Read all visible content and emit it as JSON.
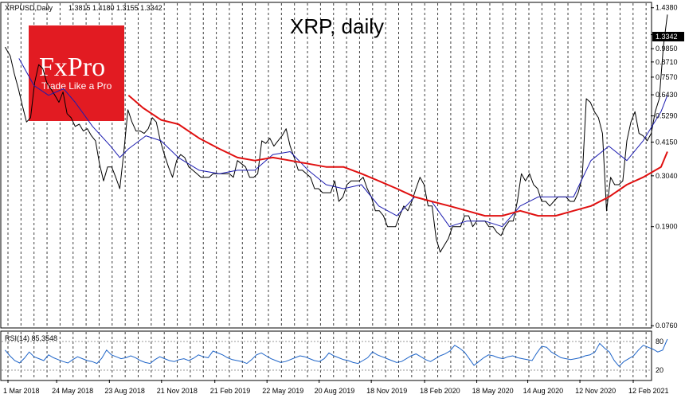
{
  "chart_data": {
    "type": "line",
    "title": "XRP, daily",
    "header": {
      "symbol_label": "XRPUSD,Daily",
      "ohlc": "1.3815 1.4180 1.3155 1.3342"
    },
    "last_price_label": "1.3342",
    "y_scale": "log",
    "ylim": [
      0.075,
      1.5
    ],
    "y_ticks": [
      1.438,
      1.3342,
      1.121,
      0.985,
      0.871,
      0.757,
      0.643,
      0.529,
      0.415,
      0.304,
      0.19,
      0.076
    ],
    "y_tick_labels": [
      "1.4380",
      "1.1210",
      "0.9850",
      "0.8710",
      "0.7570",
      "0.6430",
      "0.5290",
      "0.4150",
      "0.3040",
      "0.1900",
      "0.0760"
    ],
    "x_tick_labels": [
      "1 Mar 2018",
      "24 May 2018",
      "23 Aug 2018",
      "21 Nov 2018",
      "21 Feb 2019",
      "22 May 2019",
      "20 Aug 2019",
      "18 Nov 2019",
      "18 Feb 2020",
      "18 May 2020",
      "14 Aug 2020",
      "12 Nov 2020",
      "12 Feb 2021"
    ],
    "x_tick_dates": [
      "2018-03-01",
      "2018-05-24",
      "2018-08-23",
      "2018-11-21",
      "2019-02-21",
      "2019-05-22",
      "2019-08-20",
      "2019-11-18",
      "2020-02-18",
      "2020-05-18",
      "2020-08-14",
      "2020-11-12",
      "2021-02-12"
    ],
    "xlim": [
      "2018-02-24",
      "2021-02-19"
    ],
    "grid": "vertical dashed",
    "series": [
      {
        "key": "price",
        "color": "#000000",
        "points": [
          [
            "2018-02-24",
            1.0
          ],
          [
            "2018-03-05",
            0.92
          ],
          [
            "2018-03-12",
            0.78
          ],
          [
            "2018-03-19",
            0.68
          ],
          [
            "2018-03-26",
            0.58
          ],
          [
            "2018-04-02",
            0.5
          ],
          [
            "2018-04-09",
            0.52
          ],
          [
            "2018-04-16",
            0.72
          ],
          [
            "2018-04-23",
            0.85
          ],
          [
            "2018-04-30",
            0.82
          ],
          [
            "2018-05-07",
            0.72
          ],
          [
            "2018-05-14",
            0.68
          ],
          [
            "2018-05-21",
            0.64
          ],
          [
            "2018-05-28",
            0.6
          ],
          [
            "2018-06-04",
            0.66
          ],
          [
            "2018-06-11",
            0.54
          ],
          [
            "2018-06-18",
            0.52
          ],
          [
            "2018-06-25",
            0.48
          ],
          [
            "2018-07-02",
            0.49
          ],
          [
            "2018-07-09",
            0.46
          ],
          [
            "2018-07-16",
            0.47
          ],
          [
            "2018-07-23",
            0.44
          ],
          [
            "2018-07-30",
            0.42
          ],
          [
            "2018-08-06",
            0.34
          ],
          [
            "2018-08-13",
            0.29
          ],
          [
            "2018-08-20",
            0.33
          ],
          [
            "2018-08-27",
            0.33
          ],
          [
            "2018-09-03",
            0.3
          ],
          [
            "2018-09-10",
            0.27
          ],
          [
            "2018-09-17",
            0.38
          ],
          [
            "2018-09-24",
            0.56
          ],
          [
            "2018-10-01",
            0.5
          ],
          [
            "2018-10-08",
            0.46
          ],
          [
            "2018-10-15",
            0.46
          ],
          [
            "2018-10-22",
            0.45
          ],
          [
            "2018-10-29",
            0.47
          ],
          [
            "2018-11-05",
            0.52
          ],
          [
            "2018-11-12",
            0.5
          ],
          [
            "2018-11-19",
            0.42
          ],
          [
            "2018-11-26",
            0.37
          ],
          [
            "2018-12-03",
            0.33
          ],
          [
            "2018-12-10",
            0.3
          ],
          [
            "2018-12-17",
            0.35
          ],
          [
            "2018-12-24",
            0.37
          ],
          [
            "2018-12-31",
            0.36
          ],
          [
            "2019-01-07",
            0.33
          ],
          [
            "2019-01-14",
            0.32
          ],
          [
            "2019-01-21",
            0.31
          ],
          [
            "2019-01-28",
            0.3
          ],
          [
            "2019-02-04",
            0.3
          ],
          [
            "2019-02-11",
            0.3
          ],
          [
            "2019-02-18",
            0.31
          ],
          [
            "2019-02-25",
            0.31
          ],
          [
            "2019-03-04",
            0.31
          ],
          [
            "2019-03-11",
            0.31
          ],
          [
            "2019-03-18",
            0.31
          ],
          [
            "2019-03-25",
            0.3
          ],
          [
            "2019-04-01",
            0.35
          ],
          [
            "2019-04-08",
            0.34
          ],
          [
            "2019-04-15",
            0.33
          ],
          [
            "2019-04-22",
            0.3
          ],
          [
            "2019-04-29",
            0.3
          ],
          [
            "2019-05-06",
            0.31
          ],
          [
            "2019-05-13",
            0.42
          ],
          [
            "2019-05-20",
            0.41
          ],
          [
            "2019-05-27",
            0.43
          ],
          [
            "2019-06-03",
            0.4
          ],
          [
            "2019-06-10",
            0.42
          ],
          [
            "2019-06-17",
            0.44
          ],
          [
            "2019-06-24",
            0.47
          ],
          [
            "2019-07-01",
            0.4
          ],
          [
            "2019-07-08",
            0.36
          ],
          [
            "2019-07-15",
            0.32
          ],
          [
            "2019-07-22",
            0.32
          ],
          [
            "2019-07-29",
            0.31
          ],
          [
            "2019-08-05",
            0.3
          ],
          [
            "2019-08-12",
            0.27
          ],
          [
            "2019-08-19",
            0.27
          ],
          [
            "2019-08-26",
            0.26
          ],
          [
            "2019-09-02",
            0.26
          ],
          [
            "2019-09-09",
            0.26
          ],
          [
            "2019-09-16",
            0.29
          ],
          [
            "2019-09-23",
            0.24
          ],
          [
            "2019-09-30",
            0.25
          ],
          [
            "2019-10-07",
            0.28
          ],
          [
            "2019-10-14",
            0.29
          ],
          [
            "2019-10-21",
            0.29
          ],
          [
            "2019-10-28",
            0.29
          ],
          [
            "2019-11-04",
            0.3
          ],
          [
            "2019-11-11",
            0.27
          ],
          [
            "2019-11-18",
            0.25
          ],
          [
            "2019-11-25",
            0.22
          ],
          [
            "2019-12-02",
            0.22
          ],
          [
            "2019-12-09",
            0.21
          ],
          [
            "2019-12-16",
            0.19
          ],
          [
            "2019-12-23",
            0.19
          ],
          [
            "2019-12-30",
            0.19
          ],
          [
            "2020-01-06",
            0.21
          ],
          [
            "2020-01-13",
            0.23
          ],
          [
            "2020-01-20",
            0.22
          ],
          [
            "2020-01-27",
            0.24
          ],
          [
            "2020-02-03",
            0.27
          ],
          [
            "2020-02-10",
            0.3
          ],
          [
            "2020-02-17",
            0.28
          ],
          [
            "2020-02-24",
            0.23
          ],
          [
            "2020-03-02",
            0.23
          ],
          [
            "2020-03-09",
            0.17
          ],
          [
            "2020-03-16",
            0.15
          ],
          [
            "2020-03-23",
            0.16
          ],
          [
            "2020-03-30",
            0.17
          ],
          [
            "2020-04-06",
            0.19
          ],
          [
            "2020-04-13",
            0.19
          ],
          [
            "2020-04-20",
            0.19
          ],
          [
            "2020-04-27",
            0.21
          ],
          [
            "2020-05-04",
            0.21
          ],
          [
            "2020-05-11",
            0.19
          ],
          [
            "2020-05-18",
            0.2
          ],
          [
            "2020-05-25",
            0.2
          ],
          [
            "2020-06-01",
            0.2
          ],
          [
            "2020-06-08",
            0.19
          ],
          [
            "2020-06-15",
            0.19
          ],
          [
            "2020-06-22",
            0.18
          ],
          [
            "2020-06-29",
            0.175
          ],
          [
            "2020-07-06",
            0.19
          ],
          [
            "2020-07-13",
            0.2
          ],
          [
            "2020-07-20",
            0.2
          ],
          [
            "2020-07-27",
            0.24
          ],
          [
            "2020-08-03",
            0.31
          ],
          [
            "2020-08-10",
            0.29
          ],
          [
            "2020-08-17",
            0.31
          ],
          [
            "2020-08-24",
            0.28
          ],
          [
            "2020-08-31",
            0.27
          ],
          [
            "2020-09-07",
            0.24
          ],
          [
            "2020-09-14",
            0.24
          ],
          [
            "2020-09-21",
            0.23
          ],
          [
            "2020-09-28",
            0.24
          ],
          [
            "2020-10-05",
            0.25
          ],
          [
            "2020-10-12",
            0.25
          ],
          [
            "2020-10-19",
            0.25
          ],
          [
            "2020-10-26",
            0.24
          ],
          [
            "2020-11-02",
            0.24
          ],
          [
            "2020-11-09",
            0.26
          ],
          [
            "2020-11-16",
            0.3
          ],
          [
            "2020-11-23",
            0.62
          ],
          [
            "2020-11-30",
            0.6
          ],
          [
            "2020-12-07",
            0.55
          ],
          [
            "2020-12-14",
            0.52
          ],
          [
            "2020-12-21",
            0.45
          ],
          [
            "2020-12-28",
            0.22
          ],
          [
            "2021-01-04",
            0.3
          ],
          [
            "2021-01-11",
            0.28
          ],
          [
            "2021-01-18",
            0.28
          ],
          [
            "2021-01-25",
            0.29
          ],
          [
            "2021-02-01",
            0.42
          ],
          [
            "2021-02-08",
            0.5
          ],
          [
            "2021-02-15",
            0.55
          ],
          [
            "2021-02-22",
            0.45
          ],
          [
            "2021-03-01",
            0.44
          ],
          [
            "2021-03-08",
            0.42
          ],
          [
            "2021-03-15",
            0.45
          ],
          [
            "2021-03-22",
            0.55
          ],
          [
            "2021-03-29",
            0.62
          ],
          [
            "2021-04-05",
            1.0
          ],
          [
            "2021-04-12",
            1.35
          ]
        ]
      },
      {
        "key": "ma_short",
        "color": "#1c1cb0",
        "points": [
          [
            "2018-03-20",
            0.9
          ],
          [
            "2018-04-15",
            0.7
          ],
          [
            "2018-05-10",
            0.64
          ],
          [
            "2018-06-05",
            0.68
          ],
          [
            "2018-06-25",
            0.6
          ],
          [
            "2018-07-25",
            0.48
          ],
          [
            "2018-08-25",
            0.4
          ],
          [
            "2018-09-10",
            0.36
          ],
          [
            "2018-09-25",
            0.39
          ],
          [
            "2018-10-25",
            0.44
          ],
          [
            "2018-11-20",
            0.42
          ],
          [
            "2018-12-20",
            0.36
          ],
          [
            "2019-01-25",
            0.32
          ],
          [
            "2019-03-01",
            0.31
          ],
          [
            "2019-04-01",
            0.32
          ],
          [
            "2019-05-01",
            0.32
          ],
          [
            "2019-06-01",
            0.37
          ],
          [
            "2019-07-01",
            0.38
          ],
          [
            "2019-08-01",
            0.32
          ],
          [
            "2019-09-01",
            0.28
          ],
          [
            "2019-10-01",
            0.27
          ],
          [
            "2019-11-01",
            0.28
          ],
          [
            "2019-12-01",
            0.23
          ],
          [
            "2020-01-01",
            0.21
          ],
          [
            "2020-02-01",
            0.25
          ],
          [
            "2020-03-01",
            0.24
          ],
          [
            "2020-04-01",
            0.19
          ],
          [
            "2020-05-01",
            0.2
          ],
          [
            "2020-06-01",
            0.2
          ],
          [
            "2020-07-01",
            0.19
          ],
          [
            "2020-08-01",
            0.23
          ],
          [
            "2020-09-01",
            0.25
          ],
          [
            "2020-10-01",
            0.25
          ],
          [
            "2020-11-01",
            0.25
          ],
          [
            "2020-12-01",
            0.35
          ],
          [
            "2021-01-01",
            0.4
          ],
          [
            "2021-02-01",
            0.35
          ],
          [
            "2021-03-01",
            0.42
          ],
          [
            "2021-04-01",
            0.55
          ],
          [
            "2021-04-12",
            0.64
          ]
        ]
      },
      {
        "key": "ma_long",
        "color": "#e01010",
        "points": [
          [
            "2018-09-25",
            0.64
          ],
          [
            "2018-10-20",
            0.57
          ],
          [
            "2018-11-20",
            0.51
          ],
          [
            "2018-12-20",
            0.49
          ],
          [
            "2019-01-25",
            0.43
          ],
          [
            "2019-03-01",
            0.39
          ],
          [
            "2019-04-01",
            0.36
          ],
          [
            "2019-05-01",
            0.35
          ],
          [
            "2019-06-01",
            0.36
          ],
          [
            "2019-07-01",
            0.35
          ],
          [
            "2019-08-01",
            0.34
          ],
          [
            "2019-09-01",
            0.33
          ],
          [
            "2019-10-01",
            0.33
          ],
          [
            "2019-11-01",
            0.31
          ],
          [
            "2019-12-01",
            0.29
          ],
          [
            "2020-01-01",
            0.27
          ],
          [
            "2020-02-01",
            0.25
          ],
          [
            "2020-03-01",
            0.24
          ],
          [
            "2020-04-01",
            0.23
          ],
          [
            "2020-05-01",
            0.22
          ],
          [
            "2020-06-01",
            0.21
          ],
          [
            "2020-07-01",
            0.21
          ],
          [
            "2020-08-01",
            0.22
          ],
          [
            "2020-09-01",
            0.21
          ],
          [
            "2020-10-01",
            0.21
          ],
          [
            "2020-11-01",
            0.22
          ],
          [
            "2020-12-01",
            0.23
          ],
          [
            "2021-01-01",
            0.25
          ],
          [
            "2021-02-01",
            0.28
          ],
          [
            "2021-03-01",
            0.3
          ],
          [
            "2021-04-01",
            0.33
          ],
          [
            "2021-04-12",
            0.38
          ]
        ]
      }
    ],
    "rsi": {
      "label": "RSI(14) 85.3548",
      "ylim": [
        0,
        100
      ],
      "y_ticks": [
        80,
        20
      ],
      "color": "#1e64c8",
      "levels_color": "#9a9a9a",
      "values": [
        62,
        50,
        40,
        35,
        45,
        58,
        48,
        44,
        40,
        52,
        46,
        42,
        38,
        35,
        42,
        48,
        44,
        40,
        38,
        34,
        45,
        62,
        52,
        48,
        44,
        46,
        50,
        46,
        40,
        36,
        34,
        42,
        48,
        44,
        40,
        38,
        42,
        44,
        40,
        45,
        52,
        48,
        46,
        60,
        56,
        52,
        46,
        42,
        40,
        38,
        34,
        42,
        52,
        56,
        50,
        44,
        40,
        36,
        38,
        42,
        46,
        50,
        48,
        44,
        40,
        38,
        44,
        56,
        50,
        46,
        42,
        40,
        36,
        34,
        40,
        46,
        58,
        52,
        48,
        44,
        40,
        36,
        38,
        44,
        50,
        54,
        48,
        42,
        38,
        44,
        50,
        54,
        60,
        72,
        66,
        58,
        44,
        30,
        38,
        46,
        52,
        50,
        46,
        44,
        48,
        50,
        46,
        44,
        42,
        40,
        56,
        70,
        68,
        58,
        52,
        46,
        44,
        42,
        44,
        46,
        50,
        52,
        58,
        76,
        66,
        58,
        40,
        28,
        38,
        44,
        50,
        62,
        72,
        68,
        64,
        58,
        62,
        85
      ]
    }
  },
  "logo": {
    "main_text": "FxPro",
    "sub_text": "Trade Like a Pro",
    "bg_color": "#e21b22"
  }
}
